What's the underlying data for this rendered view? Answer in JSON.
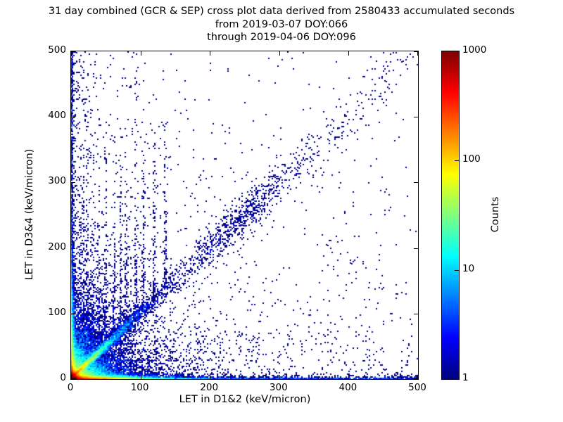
{
  "title": {
    "line1": "31 day combined (GCR & SEP) cross plot data derived from 2580433 accumulated seconds",
    "line2": "from 2019-03-07 DOY:066",
    "line3": "through 2019-04-06 DOY:096"
  },
  "chart_data": {
    "type": "heatmap",
    "subtype": "2d-histogram cross plot of LET events, jet colormap, log color scale",
    "title": "31 day combined (GCR & SEP) cross plot data derived from 2580433 accumulated seconds from 2019-03-07 DOY:066 through 2019-04-06 DOY:096",
    "xlabel": "LET in D1&2 (keV/micron)",
    "ylabel": "LET in D3&4 (keV/micron)",
    "xlim": [
      0,
      500
    ],
    "ylim": [
      0,
      500
    ],
    "x_ticks": [
      "0",
      "100",
      "200",
      "300",
      "400",
      "500"
    ],
    "y_ticks": [
      "0",
      "100",
      "200",
      "300",
      "400",
      "500"
    ],
    "grid": false,
    "colorbar": {
      "label": "Counts",
      "scale": "log",
      "min": 1,
      "max": 1000,
      "ticks": [
        "1",
        "10",
        "100",
        "1000"
      ],
      "colormap": "jet",
      "color_low": "#000080",
      "color_mid": "#00d1ff",
      "color_high": "#800000"
    },
    "bins": 250,
    "seed": 20190307,
    "features": [
      {
        "name": "origin-hot-core",
        "type": "cloud",
        "n": 26000,
        "xscale": 3.2,
        "yscale": 3.2
      },
      {
        "name": "near-origin-cloud",
        "type": "cloud",
        "n": 12000,
        "xscale": 16,
        "yscale": 16
      },
      {
        "name": "wide-origin-cloud",
        "type": "cloud",
        "n": 5000,
        "xscale": 45,
        "yscale": 45
      },
      {
        "name": "bottom-strip-exp",
        "type": "strip_x",
        "n": 12000,
        "xdist": "exp",
        "xscale": 38,
        "yscale": 1.7
      },
      {
        "name": "bottom-strip-uniform",
        "type": "strip_x",
        "n": 1100,
        "xdist": "uniform",
        "xscale": 0,
        "yscale": 1.7
      },
      {
        "name": "left-strip-exp",
        "type": "strip_y",
        "n": 8000,
        "ydist": "exp",
        "yscale": 50,
        "xscale": 1.7
      },
      {
        "name": "left-strip-uniform",
        "type": "strip_y",
        "n": 700,
        "ydist": "uniform",
        "yscale": 0,
        "xscale": 1.7
      },
      {
        "name": "left-column-wide",
        "type": "strip_y",
        "n": 260,
        "ydist": "uniform",
        "yscale": 0,
        "xscale": 13
      },
      {
        "name": "proton-diagonal-bright",
        "type": "diag",
        "n": 6500,
        "tdist": "exp",
        "tscale": 34,
        "t1": 0,
        "t2": 520,
        "cross0": 0.8,
        "crossk": 0.045
      },
      {
        "name": "diagonal-band-sparse",
        "type": "diag",
        "n": 430,
        "tdist": "uniform",
        "tscale": 0,
        "t1": 80,
        "t2": 520,
        "cross0": 5,
        "crossk": 0.025
      },
      {
        "name": "iron-group-cluster",
        "type": "diag",
        "n": 520,
        "tdist": "normal",
        "tmean": 247,
        "tsd": 38,
        "t1": 0,
        "t2": 520,
        "cross0": 11,
        "crossk": 0
      },
      {
        "name": "vertical-fingers",
        "type": "columns",
        "xs": [
          14,
          19,
          25,
          32,
          40,
          50,
          62,
          72,
          80,
          94,
          105,
          120,
          136
        ],
        "n_each": 85,
        "yscale": 105,
        "xsd": 1.1
      },
      {
        "name": "horizontal-fingers",
        "type": "rows",
        "ys": [
          28,
          40,
          54
        ],
        "n_each": 40,
        "xscale": 110,
        "ysd": 1.1
      },
      {
        "name": "background-low-y",
        "type": "strip_x",
        "n": 680,
        "xdist": "uniform",
        "xscale": 0,
        "yscale": 115
      },
      {
        "name": "background-low-x",
        "type": "strip_y",
        "n": 450,
        "ydist": "uniform",
        "yscale": 0,
        "xscale": 115
      },
      {
        "name": "background-uniform",
        "type": "uniform",
        "n": 130
      }
    ]
  },
  "colors": {
    "background": "#ffffff",
    "axes": "#000000",
    "text": "#000000"
  }
}
